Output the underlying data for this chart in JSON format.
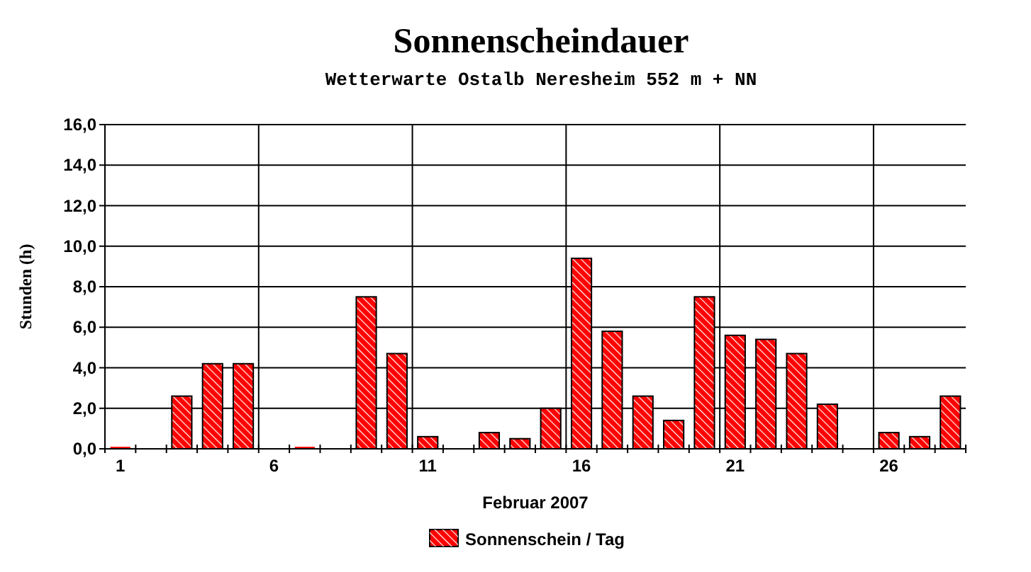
{
  "chart_data": {
    "type": "bar",
    "title": "Sonnenscheindauer",
    "subtitle": "Wetterwarte Ostalb Neresheim 552 m + NN",
    "xlabel": "Februar 2007",
    "ylabel": "Stunden  (h)",
    "categories": [
      "1",
      null,
      null,
      null,
      null,
      "6",
      null,
      null,
      null,
      null,
      "11",
      null,
      null,
      null,
      null,
      "16",
      null,
      null,
      null,
      null,
      "21",
      null,
      null,
      null,
      null,
      "26",
      null,
      null
    ],
    "series": [
      {
        "name": "Sonnenschein / Tag",
        "color": "#ff0000",
        "values": [
          0.1,
          0,
          2.6,
          4.2,
          4.2,
          0,
          0.1,
          0,
          7.5,
          4.7,
          0.6,
          0,
          0.8,
          0.5,
          2.0,
          9.4,
          5.8,
          2.6,
          1.4,
          7.5,
          5.6,
          5.4,
          4.7,
          2.2,
          0,
          0.8,
          0.6,
          2.6
        ]
      }
    ],
    "ylim": [
      0,
      16
    ],
    "yticks": [
      {
        "value": 0,
        "label": "0,0"
      },
      {
        "value": 2,
        "label": "2,0"
      },
      {
        "value": 4,
        "label": "4,0"
      },
      {
        "value": 6,
        "label": "6,0"
      },
      {
        "value": 8,
        "label": "8,0"
      },
      {
        "value": 10,
        "label": "10,0"
      },
      {
        "value": 12,
        "label": "12,0"
      },
      {
        "value": 14,
        "label": "14,0"
      },
      {
        "value": 16,
        "label": "16,0"
      }
    ],
    "grid": true,
    "legend": "bottom"
  }
}
